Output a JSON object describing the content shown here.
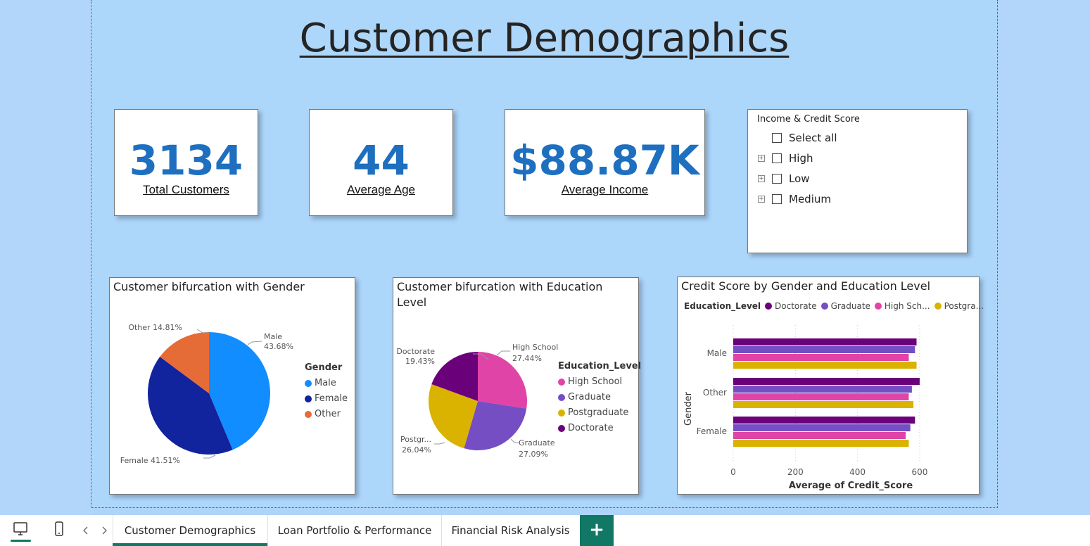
{
  "page": {
    "title": "Customer Demographics"
  },
  "kpis": [
    {
      "value": "3134",
      "label": "Total Customers"
    },
    {
      "value": "44",
      "label": "Average Age"
    },
    {
      "value": "$88.87K",
      "label": "Average Income"
    }
  ],
  "slicer": {
    "title": "Income & Credit Score",
    "items": [
      "Select all",
      "High",
      "Low",
      "Medium"
    ]
  },
  "charts": {
    "gender_pie": {
      "title": "Customer bifurcation with Gender",
      "legend_title": "Gender",
      "labels": {
        "male": "Male",
        "male_pct": "43.68%",
        "female": "Female 41.51%",
        "other": "Other 14.81%"
      }
    },
    "education_pie": {
      "title_line1": "Customer bifurcation with Education",
      "title_line2": "Level",
      "legend_title": "Education_Level",
      "labels": {
        "doctorate": "Doctorate",
        "doctorate_pct": "19.43%",
        "highschool": "High School",
        "highschool_pct": "27.44%",
        "postgrad": "Postgr...",
        "postgrad_pct": "26.04%",
        "graduate": "Graduate",
        "graduate_pct": "27.09%"
      }
    },
    "credit_bar": {
      "title": "Credit Score by Gender and Education Level",
      "legend_title": "Education_Level",
      "legend_items": [
        "Doctorate",
        "Graduate",
        "High Sch...",
        "Postgra..."
      ],
      "ylabel": "Gender",
      "xlabel": "Average of Credit_Score",
      "xticks": [
        "0",
        "200",
        "400",
        "600"
      ]
    }
  },
  "colors": {
    "male": "#118dff",
    "female": "#12239e",
    "other": "#e66c37",
    "highschool": "#e044a7",
    "graduate": "#744ec2",
    "postgrad": "#d9b300",
    "doctorate": "#6b007b",
    "kpi_value": "#1e6fbf",
    "accent": "#117865"
  },
  "chart_data": [
    {
      "type": "pie",
      "title": "Customer bifurcation with Gender",
      "categories": [
        "Male",
        "Female",
        "Other"
      ],
      "values": [
        43.68,
        41.51,
        14.81
      ]
    },
    {
      "type": "pie",
      "title": "Customer bifurcation with Education Level",
      "categories": [
        "High School",
        "Graduate",
        "Postgraduate",
        "Doctorate"
      ],
      "values": [
        27.44,
        27.09,
        26.04,
        19.43
      ]
    },
    {
      "type": "bar",
      "title": "Credit Score by Gender and Education Level",
      "categories": [
        "Male",
        "Other",
        "Female"
      ],
      "series": [
        {
          "name": "Doctorate",
          "values": [
            590,
            600,
            585
          ]
        },
        {
          "name": "Graduate",
          "values": [
            585,
            575,
            570
          ]
        },
        {
          "name": "High School",
          "values": [
            565,
            565,
            555
          ]
        },
        {
          "name": "Postgraduate",
          "values": [
            590,
            580,
            565
          ]
        }
      ],
      "xlabel": "Average of Credit_Score",
      "ylabel": "Gender",
      "xlim": [
        0,
        650
      ]
    }
  ],
  "tabs": {
    "items": [
      "Customer Demographics",
      "Loan Portfolio & Performance",
      "Financial Risk Analysis"
    ],
    "add": "+"
  }
}
